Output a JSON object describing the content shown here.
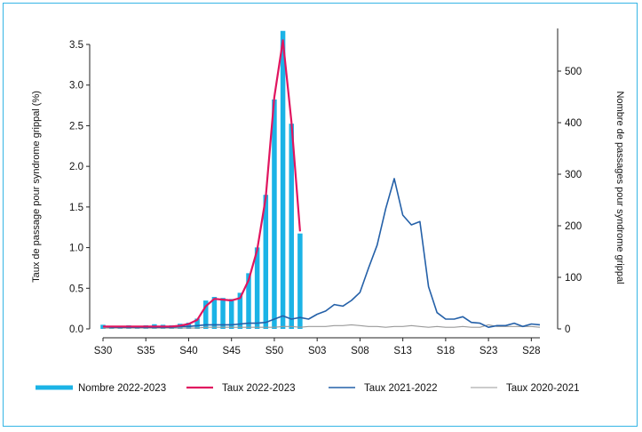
{
  "chart_data": {
    "type": "bar+line",
    "x_categories": [
      "S30",
      "S31",
      "S32",
      "S33",
      "S34",
      "S35",
      "S36",
      "S37",
      "S38",
      "S39",
      "S40",
      "S41",
      "S42",
      "S43",
      "S44",
      "S45",
      "S46",
      "S47",
      "S48",
      "S49",
      "S50",
      "S51",
      "S52",
      "S01",
      "S02",
      "S03",
      "S04",
      "S05",
      "S06",
      "S07",
      "S08",
      "S09",
      "S10",
      "S11",
      "S12",
      "S13",
      "S14",
      "S15",
      "S16",
      "S17",
      "S18",
      "S19",
      "S20",
      "S21",
      "S22",
      "S23",
      "S24",
      "S25",
      "S26",
      "S27",
      "S28",
      "S29"
    ],
    "x_tick_labels": [
      "S30",
      "S35",
      "S40",
      "S45",
      "S50",
      "S03",
      "S08",
      "S13",
      "S18",
      "S23",
      "S28"
    ],
    "y_left": {
      "label": "Taux de passage pour syndrome grippal (%)",
      "range": [
        0,
        3.6
      ],
      "ticks": [
        "0.0",
        "0.5",
        "1.0",
        "1.5",
        "2.0",
        "2.5",
        "3.0",
        "3.5"
      ]
    },
    "y_right": {
      "label": "Nombre de passages pour syndrome grippal",
      "range": [
        0,
        576
      ],
      "ticks": [
        "0",
        "100",
        "200",
        "300",
        "400",
        "500"
      ]
    },
    "series": [
      {
        "name": "Nombre 2022-2023",
        "kind": "bar",
        "axis": "right",
        "color": "#1bb3e6",
        "values": [
          8,
          6,
          5,
          7,
          6,
          7,
          9,
          8,
          7,
          10,
          12,
          20,
          55,
          62,
          60,
          58,
          70,
          108,
          158,
          260,
          445,
          578,
          398,
          185
        ]
      },
      {
        "name": "Taux 2022-2023",
        "kind": "line",
        "axis": "left",
        "color": "#e0155f",
        "values": [
          0.03,
          0.03,
          0.03,
          0.03,
          0.03,
          0.03,
          0.03,
          0.03,
          0.03,
          0.04,
          0.06,
          0.11,
          0.28,
          0.37,
          0.36,
          0.35,
          0.38,
          0.6,
          0.97,
          1.62,
          2.85,
          3.55,
          2.55,
          1.2
        ]
      },
      {
        "name": "Taux 2021-2022",
        "kind": "line",
        "axis": "left",
        "color": "#2460a8",
        "values": [
          0.03,
          0.02,
          0.02,
          0.02,
          0.02,
          0.02,
          0.02,
          0.02,
          0.02,
          0.03,
          0.03,
          0.04,
          0.05,
          0.05,
          0.05,
          0.05,
          0.06,
          0.07,
          0.07,
          0.08,
          0.12,
          0.16,
          0.12,
          0.14,
          0.12,
          0.18,
          0.22,
          0.3,
          0.28,
          0.35,
          0.45,
          0.75,
          1.03,
          1.48,
          1.85,
          1.4,
          1.28,
          1.32,
          0.52,
          0.2,
          0.12,
          0.12,
          0.15,
          0.08,
          0.07,
          0.02,
          0.04,
          0.04,
          0.07,
          0.03,
          0.06,
          0.05
        ]
      },
      {
        "name": "Taux 2020-2021",
        "kind": "line",
        "axis": "left",
        "color": "#9a9a9a",
        "values": [
          0.01,
          0.01,
          0.01,
          0.01,
          0.01,
          0.01,
          0.01,
          0.01,
          0.01,
          0.01,
          0.01,
          0.01,
          0.02,
          0.02,
          0.02,
          0.02,
          0.02,
          0.02,
          0.02,
          0.02,
          0.02,
          0.03,
          0.03,
          0.02,
          0.03,
          0.03,
          0.03,
          0.04,
          0.04,
          0.05,
          0.04,
          0.03,
          0.03,
          0.02,
          0.03,
          0.03,
          0.04,
          0.03,
          0.02,
          0.03,
          0.02,
          0.02,
          0.03,
          0.02,
          0.02,
          0.05,
          0.03,
          0.03,
          0.03,
          0.03,
          0.03,
          0.02
        ]
      }
    ],
    "legend_position": "bottom",
    "grid": false
  }
}
